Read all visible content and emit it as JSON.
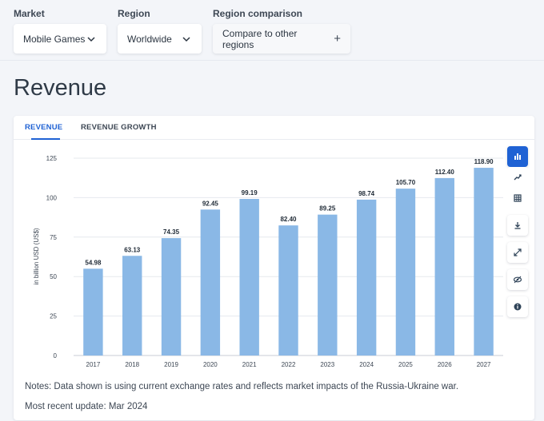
{
  "filters": {
    "market": {
      "label": "Market",
      "value": "Mobile Games"
    },
    "region": {
      "label": "Region",
      "value": "Worldwide"
    },
    "comparison": {
      "label": "Region comparison",
      "value": "Compare to other regions"
    }
  },
  "page": {
    "title": "Revenue"
  },
  "tabs": [
    {
      "label": "REVENUE",
      "active": true
    },
    {
      "label": "REVENUE GROWTH",
      "active": false
    }
  ],
  "tools": [
    "bar-chart-icon",
    "trend-icon",
    "table-icon",
    "download-icon",
    "expand-icon",
    "visibility-icon",
    "info-icon"
  ],
  "colors": {
    "bar": "#8ab8e6",
    "accent": "#1f62d4",
    "grid": "#e6e9ee"
  },
  "chart_data": {
    "type": "bar",
    "categories": [
      "2017",
      "2018",
      "2019",
      "2020",
      "2021",
      "2022",
      "2023",
      "2024",
      "2025",
      "2026",
      "2027"
    ],
    "values": [
      54.98,
      63.13,
      74.35,
      92.45,
      99.19,
      82.4,
      89.25,
      98.74,
      105.7,
      112.4,
      118.9
    ],
    "labels": [
      "54.98",
      "63.13",
      "74.35",
      "92.45",
      "99.19",
      "82.40",
      "89.25",
      "98.74",
      "105.70",
      "112.40",
      "118.90"
    ],
    "ylabel": "in billion USD (US$)",
    "ylim": [
      0,
      125
    ],
    "yticks": [
      "0",
      "25",
      "50",
      "75",
      "100",
      "125"
    ],
    "grid": true
  },
  "footer": {
    "notes": "Notes: Data shown is using current exchange rates and reflects market impacts of the Russia-Ukraine war.",
    "updated": "Most recent update: Mar 2024"
  }
}
